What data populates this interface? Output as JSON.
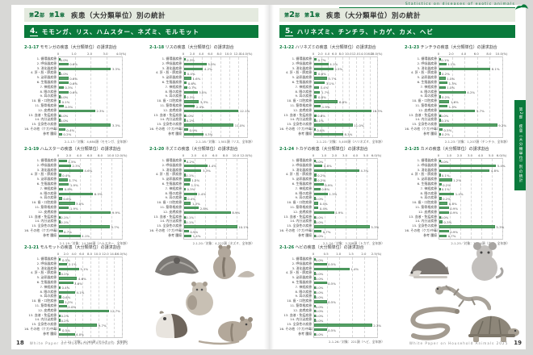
{
  "page_left": {
    "page_number": "18",
    "footer_text": "White Paper on Household Animals 2025",
    "header": {
      "part": [
        "第",
        "2",
        "部"
      ],
      "chapter": [
        "第",
        "1",
        "章"
      ],
      "title": "疾患（大分類単位）別の統計"
    },
    "section": {
      "number": "4.",
      "title": "モモンガ、リス、ハムスター、ネズミ、モルモット"
    },
    "photos": [
      "sugar-glider",
      "chipmunk",
      "hamster",
      "guinea-pig",
      "gerbil"
    ]
  },
  "page_right": {
    "page_number": "19",
    "footer_text": "White Paper on Household Animals 2025",
    "header": {
      "part": [
        "第",
        "2",
        "部"
      ],
      "chapter": [
        "第",
        "1",
        "章"
      ],
      "title": "疾患（大分類単位）別の統計"
    },
    "section": {
      "number": "5.",
      "title": "ハリネズミ、チンチラ、トカゲ、カメ、ヘビ"
    },
    "english_strip": "Statistics on diseases of exotic animals",
    "side_tab": "第2部　疾患（大分類単位）別の統計",
    "photos": [
      "hedgehog",
      "chinchilla",
      "gecko",
      "snake",
      "turtle"
    ]
  },
  "colors": {
    "brand_green": "#0a7a3c",
    "band_light": "#e4eadf",
    "bar_green": "#57a266"
  },
  "categories": [
    "1. 循環器疾患",
    "2. 呼吸器疾患",
    "3. 消化器疾患",
    "4. 肝・胆・膵疾患",
    "5. 泌尿器疾患",
    "6. 生殖器疾患",
    "7. 神経疾患",
    "8. 眼の疾患",
    "9. 耳の疾患",
    "10. 歯・口腔疾患",
    "11. 筋骨格疾患",
    "12. 皮膚疾患",
    "13. 血液・免疫疾患",
    "14. 内分泌疾患",
    "15. 全身性の疾患",
    "16. その他（ケガ/中毒）",
    "参考 腫瘍"
  ],
  "chart_data": [
    {
      "type": "bar",
      "no": "2-1-17",
      "title": "モモンガの疾患（大分類単位）の請求割合",
      "xmax": 4,
      "tick_values": [
        0,
        1,
        2,
        3,
        4
      ],
      "tick_labels": [
        "0",
        "1.0",
        "2.0",
        "3.0",
        "4.0(%)"
      ],
      "values": [
        0.0,
        0.6,
        3.3,
        0.0,
        0.6,
        0.6,
        0.3,
        0.6,
        0.0,
        0.1,
        0.3,
        2.3,
        0.0,
        0.0,
        3.3,
        0.4,
        0.2
      ],
      "note": "2-1-17／対象：4,684頭（モモンガ、全年齢）"
    },
    {
      "type": "bar",
      "no": "2-1-18",
      "title": "リスの疾患（大分類単位）の請求割合",
      "xmax": 14,
      "tick_values": [
        0,
        2,
        4,
        6,
        8,
        10,
        12,
        14
      ],
      "tick_labels": [
        "0",
        "2.0",
        "4.0",
        "6.0",
        "8.0",
        "10.0",
        "12.0",
        "14.0(%)"
      ],
      "values": [
        0.3,
        5.0,
        4.2,
        0.4,
        1.6,
        0.6,
        0.7,
        3.0,
        0.3,
        3.3,
        2.4,
        12.1,
        0.0,
        0.2,
        11.0,
        0.9,
        4.3
      ],
      "note": "2-1-18／対象：1,501頭（リス、全年齢）"
    },
    {
      "type": "bar",
      "no": "2-1-19",
      "title": "ハムスターの疾患（大分類単位）の請求割合",
      "xmax": 12,
      "tick_values": [
        0,
        2,
        4,
        6,
        8,
        10,
        12
      ],
      "tick_labels": [
        "0",
        "2.0",
        "4.0",
        "6.0",
        "8.0",
        "10.0",
        "12.0(%)"
      ],
      "values": [
        1.5,
        2.3,
        4.6,
        0.4,
        1.7,
        1.9,
        0.8,
        6.5,
        0.6,
        3.0,
        1.9,
        9.9,
        0.1,
        0.1,
        9.7,
        0.7,
        4.1
      ],
      "note": "2-1-19／対象：14,366頭（ハムスター、全年齢）"
    },
    {
      "type": "bar",
      "no": "2-1-20",
      "title": "ネズミの疾患（大分類単位）の請求割合",
      "xmax": 12,
      "tick_values": [
        0,
        2,
        4,
        6,
        8,
        10,
        12
      ],
      "tick_labels": [
        "0",
        "2.0",
        "4.0",
        "6.0",
        "8.0",
        "10.0",
        "12.0(%)"
      ],
      "values": [
        0.2,
        4.4,
        3.3,
        0.1,
        1.2,
        1.1,
        0.3,
        2.4,
        0.4,
        1.3,
        2.8,
        8.9,
        0.1,
        0.1,
        10.1,
        0.9,
        1.4
      ],
      "note": "2-1-20／対象：4,222頭（ネズミ、全年齢）"
    },
    {
      "type": "bar",
      "no": "2-1-21",
      "title": "モルモットの疾患（大分類単位）の請求割合",
      "xmax": 16,
      "tick_values": [
        0,
        2,
        4,
        6,
        8,
        10,
        12,
        14,
        16
      ],
      "tick_labels": [
        "0",
        "2.0",
        "4.0",
        "6.0",
        "8.0",
        "10.0",
        "12.0",
        "14.0",
        "16.0(%)"
      ],
      "values": [
        0.5,
        2.1,
        5.1,
        0.2,
        4.6,
        3.6,
        0.4,
        4.1,
        0.6,
        1.2,
        2.0,
        12.7,
        0.2,
        0.2,
        9.7,
        0.5,
        4.0
      ],
      "note": "2-1-21／対象：4,065頭（モルモット、全年齢）"
    },
    {
      "type": "bar",
      "no": "2-1-22",
      "title": "ハリネズミの疾患（大分類単位）の請求割合",
      "xmax": 18,
      "tick_values": [
        0,
        2,
        4,
        6,
        8,
        10,
        12,
        14,
        16,
        18
      ],
      "tick_labels": [
        "0",
        "2.0",
        "4.0",
        "6.0",
        "8.0",
        "10.0",
        "12.0",
        "14.0",
        "16.0",
        "18.0(%)"
      ],
      "values": [
        0.7,
        4.1,
        5.5,
        0.8,
        3.7,
        3.1,
        1.4,
        1.7,
        0.8,
        6.8,
        1.9,
        16.3,
        0.6,
        0.1,
        11.0,
        0.4,
        8.3
      ],
      "note": "2-1-22／対象：5,405頭（ハリネズミ、全年齢）"
    },
    {
      "type": "bar",
      "no": "2-1-23",
      "title": "チンチラの疾患（大分類単位）の請求割合",
      "xmax": 10,
      "tick_values": [
        0,
        2,
        4,
        6,
        8,
        10
      ],
      "tick_labels": [
        "0",
        "2.0",
        "4.0",
        "6.0",
        "8.0",
        "10.0(%)"
      ],
      "values": [
        0.1,
        1.1,
        8.1,
        0.2,
        1.0,
        1.3,
        1.0,
        4.2,
        0.2,
        1.6,
        1.3,
        5.7,
        0.0,
        0.1,
        9.2,
        0.5,
        0.2
      ],
      "note": "2-1-23／対象：1,207頭（チンチラ、全年齢）"
    },
    {
      "type": "bar",
      "no": "2-1-24",
      "title": "トカゲの疾患（大分類単位）の請求割合",
      "xmax": 6,
      "tick_values": [
        0,
        1,
        2,
        3,
        4,
        5,
        6
      ],
      "tick_labels": [
        "0",
        "1.0",
        "2.0",
        "3.0",
        "4.0",
        "5.0",
        "6.0(%)"
      ],
      "values": [
        0.0,
        0.8,
        4.3,
        0.2,
        0.2,
        0.9,
        0.6,
        1.3,
        0.0,
        0.4,
        0.4,
        1.9,
        0.0,
        0.0,
        5.3,
        0.7,
        0.0
      ],
      "note": "2-1-24／対象：2,358頭（トカゲ、全年齢）"
    },
    {
      "type": "bar",
      "no": "2-1-25",
      "title": "カメの疾患（大分類単位）の請求割合",
      "xmax": 6,
      "tick_values": [
        0,
        1,
        2,
        3,
        4,
        5,
        6
      ],
      "tick_labels": [
        "0",
        "1.0",
        "2.0",
        "3.0",
        "4.0",
        "5.0",
        "6.0(%)"
      ],
      "values": [
        0.0,
        5.4,
        4.8,
        0.1,
        1.2,
        0.2,
        0.1,
        1.4,
        0.2,
        0.8,
        0.9,
        0.9,
        0.0,
        0.3,
        5.3,
        0.9,
        0.7
      ],
      "note": "2-1-25／対象：1,324頭（カメ、全年齢）"
    },
    {
      "type": "bar",
      "no": "2-1-26",
      "title": "ヘビの疾患（大分類単位）の請求割合",
      "xmax": 2.5,
      "tick_values": [
        0,
        0.5,
        1,
        1.5,
        2,
        2.5
      ],
      "tick_labels": [
        "0",
        "0.5",
        "1.0",
        "1.5",
        "2.0",
        "2.5(%)"
      ],
      "values": [
        0.0,
        0.5,
        1.4,
        0.0,
        0.0,
        0.5,
        0.0,
        0.0,
        0.0,
        0.5,
        0.0,
        0.0,
        0.0,
        0.0,
        2.3,
        0.5,
        0.0
      ],
      "note": "2-1-26／対象：221頭（ヘビ、全年齢）"
    }
  ]
}
